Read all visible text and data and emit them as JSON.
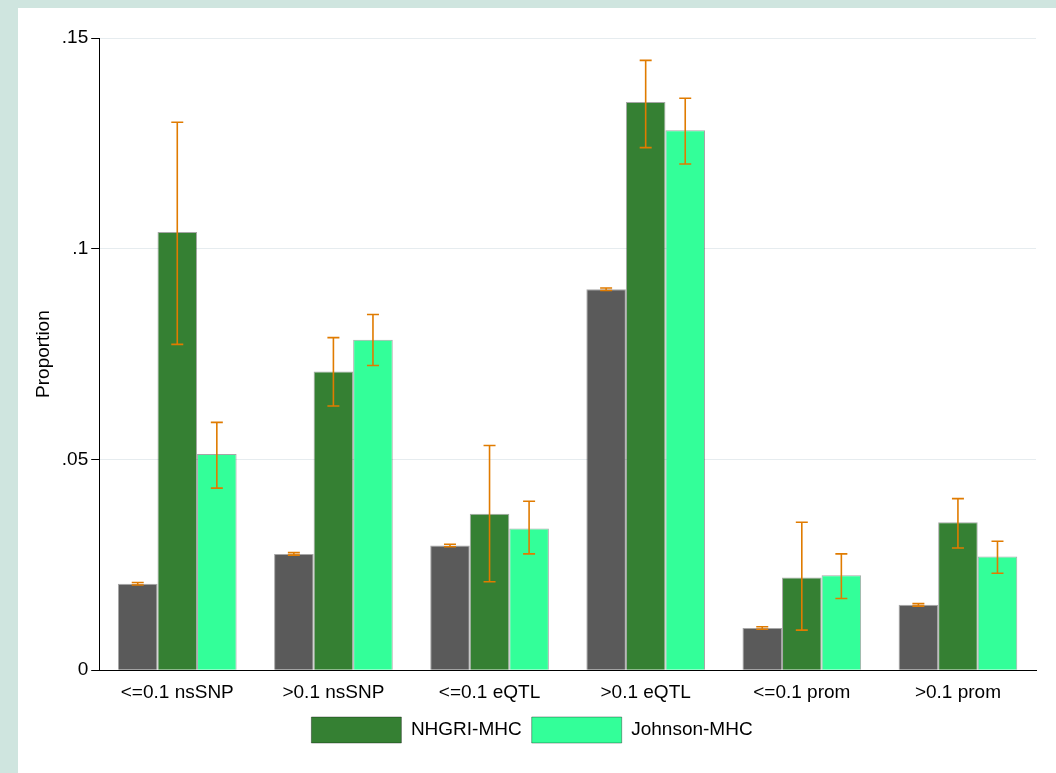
{
  "chart_data": {
    "type": "bar",
    "ylabel": "Proportion",
    "categories": [
      "<=0.1 nsSNP",
      ">0.1 nsSNP",
      "<=0.1 eQTL",
      ">0.1 eQTL",
      "<=0.1 prom",
      ">0.1 prom"
    ],
    "series": [
      {
        "color": "#5a5a5a",
        "values": [
          0.0205,
          0.0276,
          0.0296,
          0.0904,
          0.01,
          0.0155
        ],
        "errors": [
          0.0003,
          0.0003,
          0.0003,
          0.0003,
          0.0003,
          0.0003
        ]
      },
      {
        "name": "NHGRI-MHC",
        "color": "#358033",
        "values": [
          0.104,
          0.0709,
          0.0371,
          0.1348,
          0.022,
          0.0351
        ],
        "errors": [
          [
            0.0773,
            0.13
          ],
          [
            0.0627,
            0.0789
          ],
          [
            0.021,
            0.0533
          ],
          [
            0.124,
            0.1447
          ],
          [
            0.0095,
            0.0351
          ],
          [
            0.029,
            0.0407
          ]
        ]
      },
      {
        "name": "Johnson-MHC",
        "color": "#33ff99",
        "values": [
          0.0513,
          0.0784,
          0.0336,
          0.1281,
          0.0225,
          0.027
        ],
        "errors": [
          [
            0.0432,
            0.0588
          ],
          [
            0.0723,
            0.0844
          ],
          [
            0.0276,
            0.0401
          ],
          [
            0.1201,
            0.1357
          ],
          [
            0.017,
            0.0276
          ],
          [
            0.023,
            0.0306
          ]
        ]
      }
    ],
    "ylim": [
      0,
      0.15
    ],
    "yticks": [
      {
        "value": 0,
        "label": "0"
      },
      {
        "value": 0.05,
        "label": ".05"
      },
      {
        "value": 0.1,
        "label": ".1"
      },
      {
        "value": 0.15,
        "label": ".15"
      }
    ],
    "grid": "y",
    "legend": "bottom"
  }
}
